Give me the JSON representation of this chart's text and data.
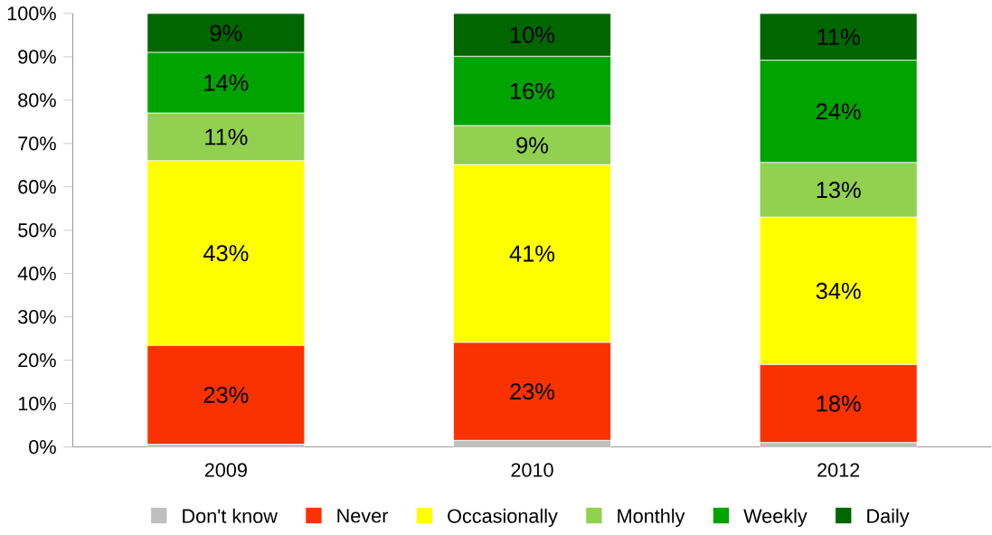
{
  "chart_data": {
    "type": "bar",
    "stacked": true,
    "categories": [
      "2009",
      "2010",
      "2012"
    ],
    "series": [
      {
        "name": "Don't know",
        "color": "#bfbfbf",
        "values": [
          0.6,
          1.5,
          1
        ],
        "value_labels": [
          null,
          null,
          null
        ]
      },
      {
        "name": "Never",
        "color": "#f93200",
        "values": [
          22.8,
          22.6,
          18
        ],
        "value_labels": [
          "23%",
          "23%",
          "18%"
        ]
      },
      {
        "name": "Occasionally",
        "color": "#ffff00",
        "values": [
          42.6,
          41,
          34
        ],
        "value_labels": [
          "43%",
          "41%",
          "34%"
        ]
      },
      {
        "name": "Monthly",
        "color": "#92d050",
        "values": [
          11,
          9,
          12.6
        ],
        "value_labels": [
          "11%",
          "9%",
          "13%"
        ]
      },
      {
        "name": "Weekly",
        "color": "#00a300",
        "values": [
          14,
          16,
          23.6
        ],
        "value_labels": [
          "14%",
          "16%",
          "24%"
        ]
      },
      {
        "name": "Daily",
        "color": "#006600",
        "values": [
          9,
          9.9,
          10.8
        ],
        "value_labels": [
          "9%",
          "10%",
          "11%"
        ]
      }
    ],
    "ylim": [
      0,
      100
    ],
    "yticks": [
      {
        "value": 0,
        "label": "0%"
      },
      {
        "value": 10,
        "label": "10%"
      },
      {
        "value": 20,
        "label": "20%"
      },
      {
        "value": 30,
        "label": "30%"
      },
      {
        "value": 40,
        "label": "40%"
      },
      {
        "value": 50,
        "label": "50%"
      },
      {
        "value": 60,
        "label": "60%"
      },
      {
        "value": 70,
        "label": "70%"
      },
      {
        "value": 80,
        "label": "80%"
      },
      {
        "value": 90,
        "label": "90%"
      },
      {
        "value": 100,
        "label": "100%"
      }
    ],
    "grid": false,
    "legend": "bottom"
  }
}
